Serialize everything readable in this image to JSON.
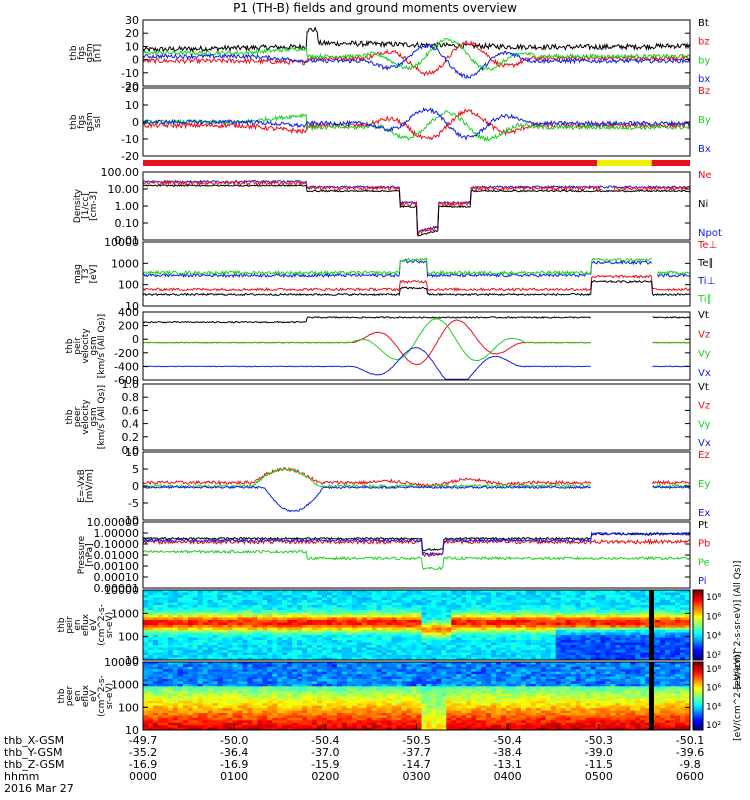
{
  "title": "P1 (TH-B) fields and ground moments overview",
  "date": "2016 Mar 27",
  "colors": {
    "black": "#000000",
    "red": "#e8101a",
    "green": "#20d020",
    "blue": "#1020e0",
    "yellow": "#f0f000"
  },
  "chart_data": [
    {
      "type": "line",
      "ylabel": [
        "thb",
        "fgs",
        "gsm",
        "[nT]"
      ],
      "ylim": [
        -20,
        30
      ],
      "yticks": [
        "-20",
        "-10",
        "0",
        "10",
        "20",
        "30"
      ],
      "legend": [
        {
          "name": "Bt",
          "color": "black"
        },
        {
          "name": "bz",
          "color": "red"
        },
        {
          "name": "by",
          "color": "green"
        },
        {
          "name": "bx",
          "color": "blue"
        }
      ]
    },
    {
      "type": "line",
      "ylabel": [
        "thb",
        "fgs",
        "gsm",
        "ssl"
      ],
      "ylim": [
        -25,
        25
      ],
      "yticks": [
        "-20",
        "-10",
        "0",
        "10",
        "20"
      ],
      "legend": [
        {
          "name": "Bz",
          "color": "red"
        },
        {
          "name": "By",
          "color": "green"
        },
        {
          "name": "Bx",
          "color": "blue"
        }
      ]
    },
    {
      "type": "line",
      "ylabel": [
        "Density",
        "[1/cc]",
        "[cm-3]"
      ],
      "ylim": [
        0.01,
        100
      ],
      "yticks": [
        "0.01",
        "0.10",
        "1.00",
        "10.00",
        "100.00"
      ],
      "legend": [
        {
          "name": "Ne",
          "color": "red"
        },
        {
          "name": "Ni",
          "color": "black"
        },
        {
          "name": "Npot",
          "color": "blue"
        }
      ]
    },
    {
      "type": "line",
      "ylabel": [
        "mag",
        "T3",
        "[eV]"
      ],
      "ylim": [
        10,
        10000
      ],
      "yticks": [
        "10",
        "100",
        "1000",
        "10000"
      ],
      "legend": [
        {
          "name": "Te⊥",
          "color": "red"
        },
        {
          "name": "Te∥",
          "color": "black"
        },
        {
          "name": "Ti⊥",
          "color": "blue"
        },
        {
          "name": "Ti∥",
          "color": "green"
        }
      ]
    },
    {
      "type": "line",
      "ylabel": [
        "thb",
        "peir",
        "velocity",
        "gsm",
        "[km/s (All Qs)]"
      ],
      "ylim": [
        -600,
        400
      ],
      "yticks": [
        "-600",
        "-400",
        "-200",
        "0",
        "200",
        "400"
      ],
      "legend": [
        {
          "name": "Vt",
          "color": "black"
        },
        {
          "name": "Vz",
          "color": "red"
        },
        {
          "name": "Vy",
          "color": "green"
        },
        {
          "name": "Vx",
          "color": "blue"
        }
      ]
    },
    {
      "type": "line",
      "ylabel": [
        "thb",
        "peer",
        "velocity",
        "gsm",
        "[km/s (All Qs)]"
      ],
      "ylim": [
        0,
        1
      ],
      "yticks": [
        "0.0",
        "0.2",
        "0.4",
        "0.6",
        "0.8",
        "1.0"
      ],
      "legend": [
        {
          "name": "Vt",
          "color": "black"
        },
        {
          "name": "Vz",
          "color": "red"
        },
        {
          "name": "Vy",
          "color": "green"
        },
        {
          "name": "Vx",
          "color": "blue"
        }
      ]
    },
    {
      "type": "line",
      "ylabel": [
        "E=-VxB",
        "[mV/m]"
      ],
      "ylim": [
        -10,
        10
      ],
      "yticks": [
        "-10",
        "-5",
        "0",
        "5",
        "10"
      ],
      "legend": [
        {
          "name": "Ez",
          "color": "red"
        },
        {
          "name": "Ey",
          "color": "green"
        },
        {
          "name": "Ex",
          "color": "blue"
        }
      ]
    },
    {
      "type": "line",
      "ylabel": [
        "Pressure",
        "[nPa]"
      ],
      "ylim": [
        1e-05,
        10
      ],
      "yticks": [
        "0.00001",
        "0.00010",
        "0.00100",
        "0.01000",
        "0.10000",
        "1.00000",
        "10.00000"
      ],
      "legend": [
        {
          "name": "Pt",
          "color": "black"
        },
        {
          "name": "Pb",
          "color": "red"
        },
        {
          "name": "Pe",
          "color": "green"
        },
        {
          "name": "Pi",
          "color": "blue"
        }
      ]
    },
    {
      "type": "heatmap",
      "ylabel": [
        "thb",
        "peir",
        "en",
        "eflux",
        "eV",
        "(cm^2-s-",
        "sr-eV)"
      ],
      "ylim": [
        5,
        30000
      ],
      "yticks": [
        "10",
        "100",
        "1000",
        "10000"
      ],
      "colorbar_ticks": [
        "10²",
        "10⁴",
        "10⁶",
        "10⁸"
      ],
      "colorbar_label": "[eV/(cm^2-s-sr-eV)] (All Qs)]"
    },
    {
      "type": "heatmap",
      "ylabel": [
        "thb",
        "peer",
        "en",
        "eflux",
        "eV",
        "(cm^2-s-",
        "sr-eV)"
      ],
      "ylim": [
        5,
        30000
      ],
      "yticks": [
        "10",
        "100",
        "1000",
        "10000"
      ],
      "colorbar_ticks": [
        "10²",
        "10⁴",
        "10⁶",
        "10⁸"
      ],
      "colorbar_label": "[eV/(cm^2-s-sr-eV)]"
    }
  ],
  "x_axis": {
    "row_labels": [
      "thb_X-GSM",
      "thb_Y-GSM",
      "thb_Z-GSM",
      "hhmm",
      "2016 Mar 27"
    ],
    "columns": [
      {
        "x": "-49.7",
        "y": "-35.2",
        "z": "-16.9",
        "t": "0000"
      },
      {
        "x": "-50.0",
        "y": "-36.4",
        "z": "-16.9",
        "t": "0100"
      },
      {
        "x": "-50.4",
        "y": "-37.0",
        "z": "-15.9",
        "t": "0200"
      },
      {
        "x": "-50.5",
        "y": "-37.7",
        "z": "-14.7",
        "t": "0300"
      },
      {
        "x": "-50.4",
        "y": "-38.4",
        "z": "-13.1",
        "t": "0400"
      },
      {
        "x": "-50.3",
        "y": "-39.0",
        "z": "-11.5",
        "t": "0500"
      },
      {
        "x": "-50.1",
        "y": "-39.6",
        "z": "-9.8",
        "t": "0600"
      }
    ]
  }
}
